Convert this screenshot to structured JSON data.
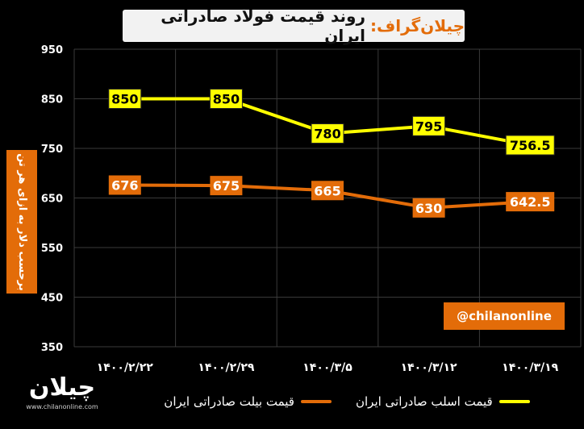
{
  "title": {
    "brand": "چیلان‌گراف:",
    "text": "روند قیمت فولاد صادراتی ایران"
  },
  "chart_data": {
    "type": "line",
    "title": "روند قیمت فولاد صادراتی ایران",
    "ylabel": "برحسب دلار به ازای هر تن",
    "xlabel": "",
    "categories": [
      "۱۴۰۰/۲/۲۲",
      "۱۴۰۰/۲/۲۹",
      "۱۴۰۰/۳/۵",
      "۱۴۰۰/۳/۱۲",
      "۱۴۰۰/۳/۱۹"
    ],
    "ylim": [
      350,
      950
    ],
    "yticks": [
      "350",
      "450",
      "550",
      "650",
      "750",
      "850",
      "950"
    ],
    "grid": true,
    "legend_position": "bottom",
    "series": [
      {
        "name": "قیمت اسلب صادراتی ایران",
        "color": "#ffff00",
        "values": [
          850,
          850,
          780,
          795,
          756.5
        ],
        "labels": [
          "850",
          "850",
          "780",
          "795",
          "756.5"
        ]
      },
      {
        "name": "قیمت بیلت صادراتی ایران",
        "color": "#e36c09",
        "values": [
          676,
          675,
          665,
          630,
          642.5
        ],
        "labels": [
          "676",
          "675",
          "665",
          "630",
          "642.5"
        ]
      }
    ]
  },
  "watermark": "@chilanonline",
  "logo": {
    "mark": "چیلان",
    "url": "www.chilanonline.com"
  }
}
